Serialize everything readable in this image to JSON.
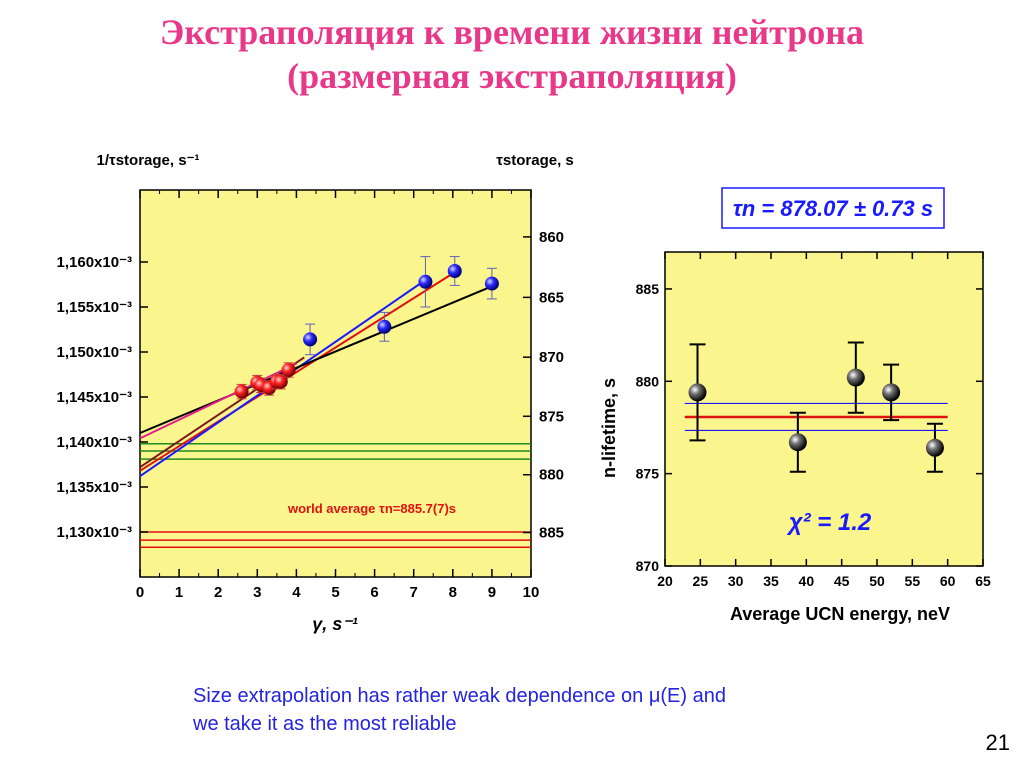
{
  "slide": {
    "title_line1": "Экстраполяция к времени жизни нейтрона",
    "title_line2": "(размерная экстраполяция)",
    "note_line1": "Size extrapolation has rather weak dependence on μ(E) and",
    "note_line2": "we take it as the most reliable",
    "page_number": "21"
  },
  "colors": {
    "title": "#e8388a",
    "plot_bg": "#faf58c",
    "note": "#2323e0",
    "red": "#e01010",
    "blue": "#1a1aff",
    "green": "#1f8a1f",
    "brown": "#7a1a1a",
    "magenta": "#e0208a",
    "black": "#000000"
  },
  "chart_data": [
    {
      "type": "scatter",
      "title": "",
      "xlabel": "γ, s⁻¹",
      "ylabel_left": "1/τstorage, s⁻¹",
      "ylabel_right": "τstorage, s",
      "xlim": [
        0,
        10
      ],
      "ylim_left": [
        0.001125,
        0.001168
      ],
      "xticks": [
        "0",
        "1",
        "2",
        "3",
        "4",
        "5",
        "6",
        "7",
        "8",
        "9",
        "10"
      ],
      "yticks_left": [
        {
          "value": 0.00113,
          "label": "1,130x10⁻³"
        },
        {
          "value": 0.001135,
          "label": "1,135x10⁻³"
        },
        {
          "value": 0.00114,
          "label": "1,140x10⁻³"
        },
        {
          "value": 0.001145,
          "label": "1,145x10⁻³"
        },
        {
          "value": 0.00115,
          "label": "1,150x10⁻³"
        },
        {
          "value": 0.001155,
          "label": "1,155x10⁻³"
        },
        {
          "value": 0.00116,
          "label": "1,160x10⁻³"
        }
      ],
      "yticks_right": [
        "860",
        "865",
        "870",
        "875",
        "880",
        "885"
      ],
      "annotation": "world average τn=885.7(7)s",
      "series": [
        {
          "color": "red",
          "marker": "circle",
          "x": [
            2.6,
            3.0,
            3.1,
            3.3,
            3.5,
            3.6,
            3.8
          ],
          "y": [
            0.0011456,
            0.0011466,
            0.0011463,
            0.001146,
            0.0011467,
            0.0011467,
            0.001148
          ],
          "err": [
            8e-07,
            8e-07,
            8e-07,
            8e-07,
            8e-07,
            8e-07,
            8e-07
          ]
        },
        {
          "color": "blue",
          "marker": "circle",
          "x": [
            4.35,
            6.25,
            7.3,
            8.05,
            9.0
          ],
          "y": [
            0.0011514,
            0.0011528,
            0.0011578,
            0.001159,
            0.0011576
          ],
          "err": [
            1.7e-06,
            1.6e-06,
            2.8e-06,
            1.6e-06,
            1.7e-06
          ]
        }
      ],
      "fit_lines": [
        {
          "color": "red",
          "x": [
            0,
            8.1
          ],
          "y": [
            0.0011368,
            0.001159
          ]
        },
        {
          "color": "blue",
          "x": [
            0,
            7.3
          ],
          "y": [
            0.0011362,
            0.001158
          ]
        },
        {
          "color": "brown",
          "x": [
            0,
            4.2
          ],
          "y": [
            0.0011372,
            0.0011494
          ]
        },
        {
          "color": "black",
          "x": [
            0,
            9.0
          ],
          "y": [
            0.001141,
            0.0011573
          ]
        },
        {
          "color": "magenta",
          "x": [
            0,
            4.0
          ],
          "y": [
            0.0011404,
            0.0011487
          ]
        }
      ],
      "hlines": [
        {
          "color": "green",
          "y": 0.0011398
        },
        {
          "color": "green",
          "y": 0.001139
        },
        {
          "color": "green",
          "y": 0.0011381
        },
        {
          "color": "red",
          "y": 0.00113
        },
        {
          "color": "red",
          "y": 0.0011291
        },
        {
          "color": "red",
          "y": 0.0011283
        }
      ]
    },
    {
      "type": "scatter",
      "title": "",
      "xlabel": "Average UCN energy, neV",
      "ylabel": "n-lifetime, s",
      "xlim": [
        20,
        65
      ],
      "ylim": [
        870,
        887
      ],
      "xticks": [
        "20",
        "25",
        "30",
        "35",
        "40",
        "45",
        "50",
        "55",
        "60",
        "65"
      ],
      "yticks": [
        "870",
        "875",
        "880",
        "885"
      ],
      "formula_box": "τn = 878.07 ± 0.73 s",
      "chi2": "χ² = 1.2",
      "series": [
        {
          "color": "black",
          "marker": "circle",
          "x": [
            24.6,
            38.8,
            47.0,
            52.0,
            58.2
          ],
          "y": [
            879.4,
            876.7,
            880.2,
            879.4,
            876.4
          ],
          "err": [
            2.6,
            1.6,
            1.9,
            1.5,
            1.3
          ]
        }
      ],
      "hlines": [
        {
          "color": "red",
          "y": 878.07
        },
        {
          "color": "blue",
          "y": 878.8
        },
        {
          "color": "blue",
          "y": 877.34
        }
      ]
    }
  ]
}
